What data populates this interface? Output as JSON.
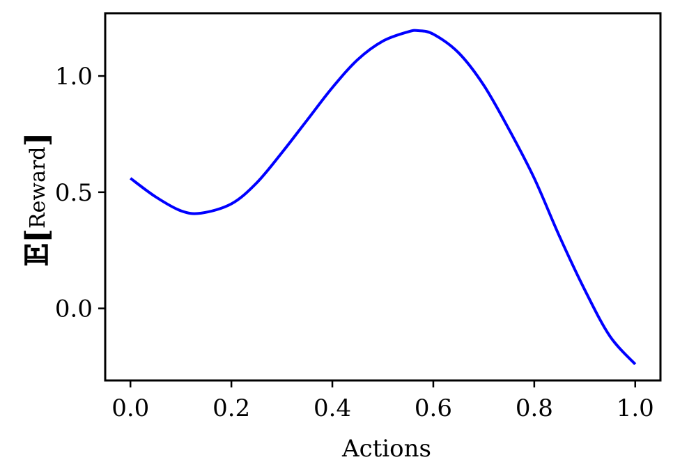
{
  "chart_data": {
    "type": "line",
    "title": "",
    "xlabel": "Actions",
    "ylabel": "𝔼[Reward]",
    "ylabel_parts": {
      "symbol": "𝔼[",
      "text": "Reward",
      "close": "]"
    },
    "xlim": [
      -0.05,
      1.05
    ],
    "ylim": [
      -0.31,
      1.27
    ],
    "xticks": [
      0.0,
      0.2,
      0.4,
      0.6,
      0.8,
      1.0
    ],
    "xtick_labels": [
      "0.0",
      "0.2",
      "0.4",
      "0.6",
      "0.8",
      "1.0"
    ],
    "yticks": [
      0.0,
      0.5,
      1.0
    ],
    "ytick_labels": [
      "0.0",
      "0.5",
      "1.0"
    ],
    "grid": false,
    "series": [
      {
        "color": "#0000ff",
        "x": [
          0.0,
          0.05,
          0.1,
          0.14,
          0.2,
          0.25,
          0.3,
          0.35,
          0.4,
          0.45,
          0.5,
          0.55,
          0.57,
          0.6,
          0.65,
          0.7,
          0.75,
          0.8,
          0.85,
          0.9,
          0.95,
          1.0
        ],
        "y": [
          0.56,
          0.48,
          0.42,
          0.41,
          0.45,
          0.54,
          0.67,
          0.81,
          0.95,
          1.07,
          1.15,
          1.19,
          1.195,
          1.18,
          1.1,
          0.96,
          0.77,
          0.56,
          0.31,
          0.08,
          -0.12,
          -0.24
        ]
      }
    ]
  }
}
